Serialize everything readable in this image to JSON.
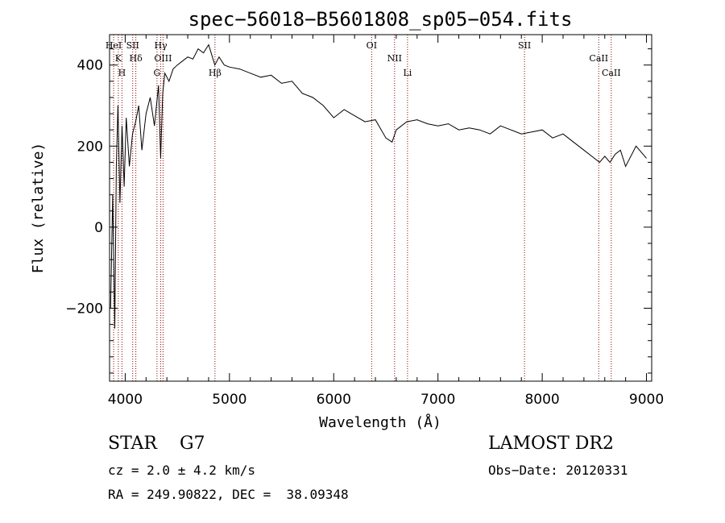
{
  "chart_data": {
    "type": "line",
    "title": "spec−56018−B5601808_sp05−054.fits",
    "xlabel": "Wavelength (Å)",
    "ylabel": "Flux (relative)",
    "xlim": [
      3850,
      9050
    ],
    "ylim": [
      -380,
      475
    ],
    "xticks": [
      4000,
      5000,
      6000,
      7000,
      8000,
      9000
    ],
    "yticks": [
      -200,
      0,
      200,
      400
    ],
    "ytick_labels": [
      "−200",
      "0",
      "200",
      "400"
    ],
    "grid": false,
    "series": [
      {
        "x": [
          3860,
          3880,
          3900,
          3915,
          3930,
          3950,
          3970,
          3990,
          4010,
          4040,
          4070,
          4100,
          4130,
          4160,
          4200,
          4240,
          4280,
          4320,
          4340,
          4360,
          4380,
          4420,
          4460,
          4500,
          4550,
          4600,
          4650,
          4700,
          4750,
          4800,
          4860,
          4900,
          4950,
          5000,
          5100,
          5200,
          5300,
          5400,
          5500,
          5600,
          5700,
          5800,
          5900,
          6000,
          6100,
          6200,
          6300,
          6400,
          6500,
          6560,
          6600,
          6700,
          6800,
          6900,
          7000,
          7100,
          7200,
          7300,
          7400,
          7500,
          7600,
          7700,
          7800,
          7900,
          8000,
          8100,
          8200,
          8300,
          8400,
          8500,
          8550,
          8600,
          8650,
          8700,
          8750,
          8800,
          8900,
          9000
        ],
        "y": [
          -200,
          80,
          -250,
          150,
          300,
          60,
          250,
          100,
          270,
          150,
          230,
          260,
          300,
          190,
          280,
          320,
          250,
          350,
          170,
          330,
          380,
          360,
          390,
          400,
          410,
          420,
          415,
          440,
          430,
          450,
          400,
          420,
          400,
          395,
          390,
          380,
          370,
          375,
          355,
          360,
          330,
          320,
          300,
          270,
          290,
          275,
          260,
          265,
          220,
          210,
          240,
          260,
          265,
          255,
          250,
          255,
          240,
          245,
          240,
          230,
          250,
          240,
          230,
          235,
          240,
          220,
          230,
          210,
          190,
          170,
          160,
          175,
          160,
          180,
          190,
          150,
          200,
          170
        ]
      }
    ],
    "lines": [
      {
        "label": "HeI",
        "x": 3889
      },
      {
        "label": "K",
        "x": 3934
      },
      {
        "label": "H",
        "x": 3969
      },
      {
        "label": "SII",
        "x": 4072
      },
      {
        "label": "Hδ",
        "x": 4102
      },
      {
        "label": "G",
        "x": 4305
      },
      {
        "label": "Hγ",
        "x": 4341
      },
      {
        "label": "OIII",
        "x": 4363
      },
      {
        "label": "Hβ",
        "x": 4861
      },
      {
        "label": "OI",
        "x": 6364
      },
      {
        "label": "NII",
        "x": 6584
      },
      {
        "label": "Li",
        "x": 6708
      },
      {
        "label": "SII",
        "x": 7830
      },
      {
        "label": "CaII",
        "x": 8542
      },
      {
        "label": "CaII",
        "x": 8662
      }
    ]
  },
  "info": {
    "class": "STAR    G7",
    "cz": "cz = 2.0 ± 4.2 km/s",
    "radec": "RA = 249.90822, DEC =  38.09348",
    "survey": "LAMOST DR2",
    "obsdate": "Obs−Date: 20120331"
  },
  "colors": {
    "spectrum": "#000000",
    "line_marker": "#8b0000",
    "axis": "#000000"
  }
}
